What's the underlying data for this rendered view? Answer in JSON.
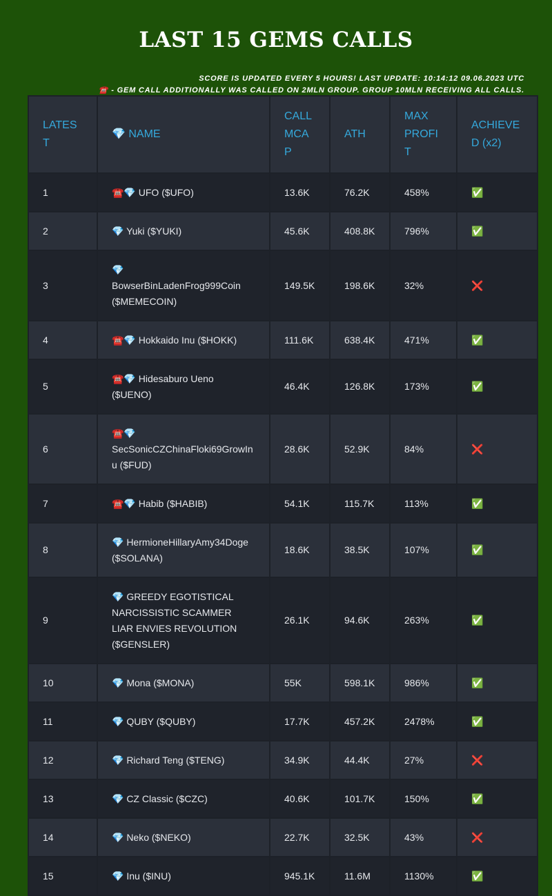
{
  "header": {
    "title": "LAST 15 GEMS CALLS",
    "notes": [
      "SCORE IS UPDATED EVERY 5 HOURS! LAST UPDATE: 10:14:12 09.06.2023 UTC",
      "☎️ - GEM CALL ADDITIONALLY WAS CALLED ON 2MLN GROUP. GROUP 10MLN RECEIVING ALL CALLS."
    ]
  },
  "table": {
    "columns": [
      "LATEST",
      "💎 NAME",
      "CALL MCAP",
      "ATH",
      "MAX PROFIT",
      "ACHIEVED (x2)"
    ],
    "rows": [
      [
        "1",
        "☎️💎 UFO ($UFO)",
        "13.6K",
        "76.2K",
        "458%",
        "✅"
      ],
      [
        "2",
        "💎 Yuki ($YUKI)",
        "45.6K",
        "408.8K",
        "796%",
        "✅"
      ],
      [
        "3",
        "💎 BowserBinLadenFrog999Coin ($MEMECOIN)",
        "149.5K",
        "198.6K",
        "32%",
        "❌"
      ],
      [
        "4",
        "☎️💎 Hokkaido Inu ($HOKK)",
        "111.6K",
        "638.4K",
        "471%",
        "✅"
      ],
      [
        "5",
        "☎️💎 Hidesaburo Ueno ($UENO)",
        "46.4K",
        "126.8K",
        "173%",
        "✅"
      ],
      [
        "6",
        "☎️💎 SecSonicCZChinaFloki69GrowInu ($FUD)",
        "28.6K",
        "52.9K",
        "84%",
        "❌"
      ],
      [
        "7",
        "☎️💎 Habib ($HABIB)",
        "54.1K",
        "115.7K",
        "113%",
        "✅"
      ],
      [
        "8",
        "💎 HermioneHillaryAmy34Doge ($SOLANA)",
        "18.6K",
        "38.5K",
        "107%",
        "✅"
      ],
      [
        "9",
        "💎 GREEDY EGOTISTICAL NARCISSISTIC SCAMMER LIAR ENVIES REVOLUTION ($GENSLER)",
        "26.1K",
        "94.6K",
        "263%",
        "✅"
      ],
      [
        "10",
        "💎 Mona ($MONA)",
        "55K",
        "598.1K",
        "986%",
        "✅"
      ],
      [
        "11",
        "💎 QUBY ($QUBY)",
        "17.7K",
        "457.2K",
        "2478%",
        "✅"
      ],
      [
        "12",
        "💎 Richard Teng ($TENG)",
        "34.9K",
        "44.4K",
        "27%",
        "❌"
      ],
      [
        "13",
        "💎 CZ Classic ($CZC)",
        "40.6K",
        "101.7K",
        "150%",
        "✅"
      ],
      [
        "14",
        "💎 Neko ($NEKO)",
        "22.7K",
        "32.5K",
        "43%",
        "❌"
      ],
      [
        "15",
        "💎 Inu ($INU)",
        "945.1K",
        "11.6M",
        "1130%",
        "✅"
      ]
    ]
  }
}
